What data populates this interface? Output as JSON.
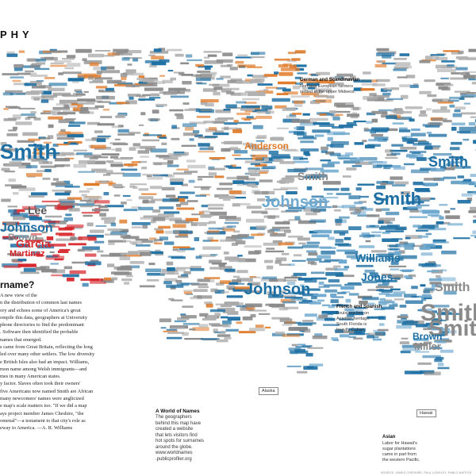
{
  "header": {
    "title": "PHY"
  },
  "article": {
    "heading": "rname?",
    "body": "A new view of the\n n the distribution of common last names\nory and echoes some of America's great\nompile this data, geographers at University\nphone directories to find the predominant\n. Software then identified the probable\n names that emerged.\ns came from Great Britain, reflecting the long\nled over many other settlers. The low diversity\ne British Isles also had an impact. Williams,\nmon name among Welsh immigrants—and\nmes in many American states.\ny factor. Slaves often took their owners'\n five Americans now named Smith are African\nmany newcomers' names were anglicized\ne map's scale matters too. \"If we did a map\nays project member James Cheshire, \"the\nomenal\"—a testament to that city's role as\neway to America. —A. R. Williams"
  },
  "annotations": [
    {
      "id": "german",
      "title": "German and Scandinavian",
      "body": "Northern European farmers\nsettled in the upper Midwest."
    },
    {
      "id": "french",
      "title": "French and Spanish",
      "body": "Louisiana lies on\nAcadian heritage.\nSouth Florida is\nheavily Cuban."
    },
    {
      "id": "world",
      "title": "A World of Names",
      "body": "The geographers\nbehind this map have\ncreated a website\nthat lets visitors find\nhot spots for surnames\naround the globe.\nwww.worldnames\n.publicprofiler.org"
    },
    {
      "id": "asian",
      "title": "Asian",
      "body": "Labor for Hawaii's\nsugar plantations\ncame in part from\nthe western Pacific."
    }
  ],
  "insets": {
    "alaska": "Alaska",
    "hawaii": "Hawaii"
  },
  "source": "SOURCE: JAMES CHESHIRE, PAUL LONGLEY, PABLO MATEOS",
  "names": {
    "large": [
      {
        "t": "Smith",
        "c": "c-blue",
        "s": 26
      },
      {
        "t": "Johnson",
        "c": "c-lblue",
        "s": 20
      },
      {
        "t": "Johnson",
        "c": "c-blue",
        "s": 20
      },
      {
        "t": "Smith",
        "c": "c-blue",
        "s": 22
      },
      {
        "t": "Smith",
        "c": "c-gray",
        "s": 30
      },
      {
        "t": "Smith",
        "c": "c-gray",
        "s": 28
      },
      {
        "t": "Williams",
        "c": "c-blue",
        "s": 14
      },
      {
        "t": "Jones",
        "c": "c-blue",
        "s": 14
      },
      {
        "t": "Garcia",
        "c": "c-red",
        "s": 14
      },
      {
        "t": "Lee",
        "c": "c-dgray",
        "s": 14
      },
      {
        "t": "Johnson",
        "c": "c-blue",
        "s": 16
      },
      {
        "t": "Anderson",
        "c": "c-orange",
        "s": 12
      },
      {
        "t": "Martinez",
        "c": "c-red",
        "s": 11
      },
      {
        "t": "Brown",
        "c": "c-gray",
        "s": 12
      },
      {
        "t": "Smith",
        "c": "c-gray",
        "s": 16
      },
      {
        "t": "Miller",
        "c": "c-gray",
        "s": 13
      },
      {
        "t": "Brown",
        "c": "c-blue",
        "s": 12
      },
      {
        "t": "Smith",
        "c": "c-blue",
        "s": 18
      },
      {
        "t": "Smith",
        "c": "c-gray",
        "s": 14
      }
    ]
  },
  "colors": {
    "blue": "#1d6fa3",
    "light_blue": "#6fa9cf",
    "gray": "#8a8a8a",
    "red": "#d7262b",
    "orange": "#e07b2a"
  }
}
